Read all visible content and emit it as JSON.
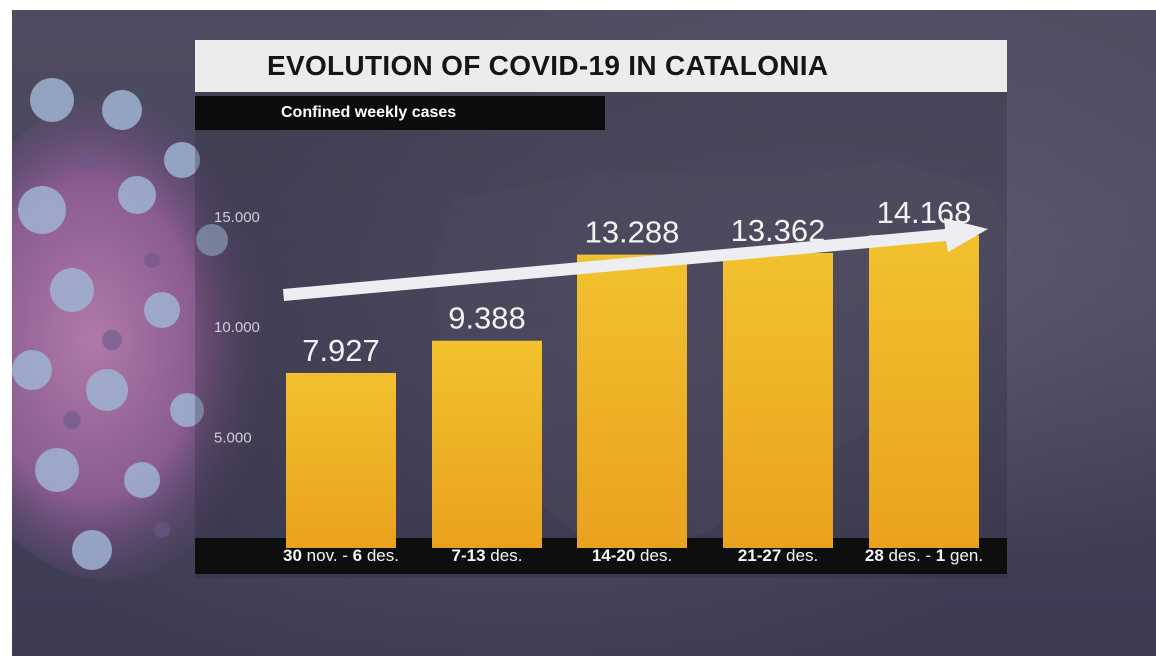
{
  "header": {
    "title": "EVOLUTION OF COVID-19 IN CATALONIA",
    "subtitle": "Confined weekly cases"
  },
  "colors": {
    "bar_top": "#f2c12e",
    "bar_bottom": "#e9a21e",
    "arrow": "#eceef2"
  },
  "chart_data": {
    "type": "bar",
    "title": "EVOLUTION OF COVID-19 IN CATALONIA",
    "subtitle": "Confined weekly cases",
    "categories": [
      {
        "parts": [
          {
            "t": "30",
            "b": true
          },
          {
            "t": " nov. - ",
            "b": false
          },
          {
            "t": "6",
            "b": true
          },
          {
            "t": " des.",
            "b": false
          }
        ]
      },
      {
        "parts": [
          {
            "t": "7-13",
            "b": true
          },
          {
            "t": " des.",
            "b": false
          }
        ]
      },
      {
        "parts": [
          {
            "t": "14-20",
            "b": true
          },
          {
            "t": " des.",
            "b": false
          }
        ]
      },
      {
        "parts": [
          {
            "t": "21-27",
            "b": true
          },
          {
            "t": " des.",
            "b": false
          }
        ]
      },
      {
        "parts": [
          {
            "t": "28",
            "b": true
          },
          {
            "t": " des. - ",
            "b": false
          },
          {
            "t": "1",
            "b": true
          },
          {
            "t": " gen.",
            "b": false
          }
        ]
      }
    ],
    "values": [
      7927,
      9388,
      13288,
      13362,
      14168
    ],
    "value_labels": [
      "7.927",
      "9.388",
      "13.288",
      "13.362",
      "14.168"
    ],
    "yticks": [
      {
        "value": 5000,
        "label": "5.000"
      },
      {
        "value": 10000,
        "label": "10.000"
      },
      {
        "value": 15000,
        "label": "15.000"
      }
    ],
    "trend_arrow": "increasing",
    "grid": false,
    "legend": "none"
  }
}
